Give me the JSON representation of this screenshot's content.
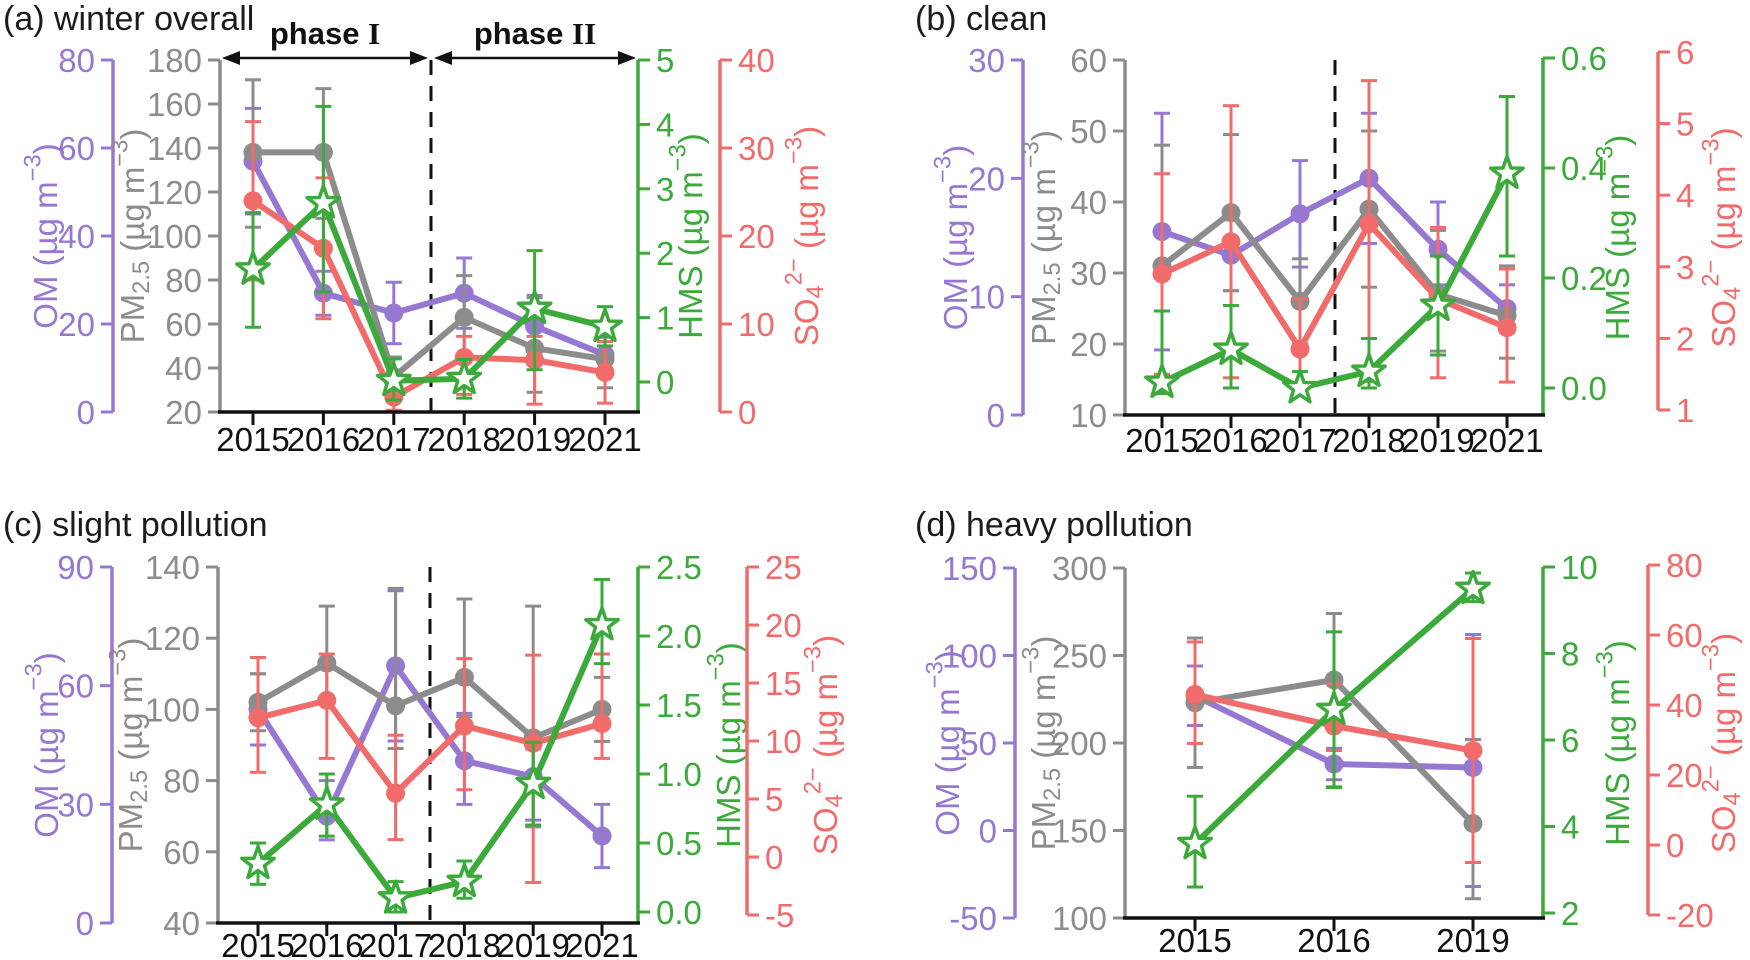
{
  "colors": {
    "om": "#9678D2",
    "pm": "#8C8C8C",
    "hms": "#3BAA3B",
    "so4": "#F26B6B",
    "axis_black": "#111111",
    "title_text": "#1c1c1c"
  },
  "axis_labels": {
    "om": [
      {
        "t": "OM (µg m"
      },
      {
        "t": "−3",
        "s": "sup"
      },
      {
        "t": ")"
      }
    ],
    "pm": [
      {
        "t": "PM"
      },
      {
        "t": "2.5",
        "s": "sub"
      },
      {
        "t": " (µg m"
      },
      {
        "t": "−3",
        "s": "sup"
      },
      {
        "t": ")"
      }
    ],
    "hms": [
      {
        "t": "HMS (µg m"
      },
      {
        "t": "−3",
        "s": "sup"
      },
      {
        "t": ")"
      }
    ],
    "so4": [
      {
        "t": "SO"
      },
      {
        "t": "4",
        "s": "sub"
      },
      {
        "t": "2−",
        "s": "sup"
      },
      {
        "t": " (µg m"
      },
      {
        "t": "−3",
        "s": "sup"
      },
      {
        "t": ")"
      }
    ]
  },
  "chart_data": [
    {
      "id": "a",
      "type": "line",
      "title": "(a) winter overall",
      "categories": [
        "2015",
        "2016",
        "2017",
        "2018",
        "2019",
        "2021"
      ],
      "phase_labels": [
        {
          "prefix": "phase ",
          "numeral": "I"
        },
        {
          "prefix": "phase ",
          "numeral": "II"
        }
      ],
      "divider_between": [
        "2017",
        "2018"
      ],
      "axes": {
        "om": {
          "ticks": [
            [
              0,
              "0"
            ],
            [
              20,
              "20"
            ],
            [
              40,
              "40"
            ],
            [
              60,
              "60"
            ],
            [
              80,
              "80"
            ]
          ]
        },
        "pm": {
          "ticks": [
            [
              20,
              "20"
            ],
            [
              40,
              "40"
            ],
            [
              60,
              "60"
            ],
            [
              80,
              "80"
            ],
            [
              100,
              "100"
            ],
            [
              120,
              "120"
            ],
            [
              140,
              "140"
            ],
            [
              160,
              "160"
            ],
            [
              180,
              "180"
            ]
          ]
        },
        "hms": {
          "ticks": [
            [
              0,
              "0"
            ],
            [
              1,
              "1"
            ],
            [
              2,
              "2"
            ],
            [
              3,
              "3"
            ],
            [
              4,
              "4"
            ],
            [
              5,
              "5"
            ]
          ]
        },
        "so4": {
          "ticks": [
            [
              0,
              "0"
            ],
            [
              10,
              "10"
            ],
            [
              20,
              "20"
            ],
            [
              30,
              "30"
            ],
            [
              40,
              "40"
            ]
          ]
        }
      },
      "series": {
        "om": {
          "name": "OM",
          "values": [
            57,
            27,
            22.5,
            27,
            19.5,
            13
          ],
          "err": [
            [
              12,
              12
            ],
            [
              5,
              5
            ],
            [
              7,
              7
            ],
            [
              8,
              8
            ],
            [
              7,
              7
            ],
            [
              4,
              4
            ]
          ]
        },
        "pm": {
          "name": "PM2.5",
          "values": [
            138,
            138,
            36,
            63,
            49,
            44
          ],
          "err": [
            [
              34,
              33
            ],
            [
              30,
              29
            ],
            [
              8,
              9
            ],
            [
              19,
              19
            ],
            [
              20,
              23
            ],
            [
              13,
              13
            ]
          ]
        },
        "hms": {
          "name": "HMS",
          "values": [
            1.75,
            2.78,
            0.02,
            0.05,
            1.14,
            0.86
          ],
          "err": [
            [
              0.9,
              0.88
            ],
            [
              1.38,
              1.5
            ],
            [
              0.3,
              0.34
            ],
            [
              0.3,
              0.3
            ],
            [
              0.95,
              0.9
            ],
            [
              0.3,
              0.31
            ]
          ]
        },
        "so4": {
          "name": "SO42-",
          "values": [
            24,
            18.6,
            1.7,
            6.2,
            5.9,
            4.5
          ],
          "err": [
            [
              9,
              9
            ],
            [
              8,
              8
            ],
            [
              1.5,
              1.5
            ],
            [
              4.2,
              2.4
            ],
            [
              5,
              2.7
            ],
            [
              3.5,
              3.5
            ]
          ]
        }
      }
    },
    {
      "id": "b",
      "type": "line",
      "title": "(b) clean",
      "categories": [
        "2015",
        "2016",
        "2017",
        "2018",
        "2019",
        "2021"
      ],
      "divider_between": [
        "2017",
        "2018"
      ],
      "axes": {
        "om": {
          "ticks": [
            [
              0,
              "0"
            ],
            [
              10,
              "10"
            ],
            [
              20,
              "20"
            ],
            [
              30,
              "30"
            ]
          ]
        },
        "pm": {
          "ticks": [
            [
              10,
              "10"
            ],
            [
              20,
              "20"
            ],
            [
              30,
              "30"
            ],
            [
              40,
              "40"
            ],
            [
              50,
              "50"
            ],
            [
              60,
              "60"
            ]
          ]
        },
        "hms": {
          "ticks": [
            [
              0,
              "0.0"
            ],
            [
              0.2,
              "0.2"
            ],
            [
              0.4,
              "0.4"
            ],
            [
              0.6,
              "0.6"
            ]
          ]
        },
        "so4": {
          "ticks": [
            [
              1,
              "1"
            ],
            [
              2,
              "2"
            ],
            [
              3,
              "3"
            ],
            [
              4,
              "4"
            ],
            [
              5,
              "5"
            ],
            [
              6,
              "6"
            ]
          ]
        }
      },
      "series": {
        "om": {
          "name": "OM",
          "values": [
            15.5,
            13.5,
            17,
            20,
            14,
            9
          ],
          "err": [
            [
              10,
              10
            ],
            [
              3,
              3
            ],
            [
              4.5,
              4.5
            ],
            [
              5.5,
              5.5
            ],
            [
              3,
              4
            ],
            [
              2,
              2
            ]
          ]
        },
        "pm": {
          "name": "PM2.5",
          "values": [
            31,
            38.5,
            26,
            39,
            27,
            24
          ],
          "err": [
            [
              17,
              17
            ],
            [
              11,
              11
            ],
            [
              6,
              6
            ],
            [
              11,
              11
            ],
            [
              8,
              9
            ],
            [
              6,
              7
            ]
          ]
        },
        "hms": {
          "name": "HMS",
          "values": [
            0.01,
            0.07,
            0.0,
            0.03,
            0.15,
            0.39
          ],
          "err": [
            [
              0.02,
              0.13
            ],
            [
              0.07,
              0.08
            ],
            [
              0.01,
              0.03
            ],
            [
              0.03,
              0.06
            ],
            [
              0.09,
              0.09
            ],
            [
              0.15,
              0.14
            ]
          ]
        },
        "so4": {
          "name": "SO42-",
          "values": [
            2.9,
            3.35,
            1.85,
            3.6,
            2.55,
            2.15
          ],
          "err": [
            [
              1.4,
              1.4
            ],
            [
              1.9,
              1.9
            ],
            [
              0.6,
              0.7
            ],
            [
              2.2,
              2.0
            ],
            [
              1.1,
              1.0
            ],
            [
              0.76,
              0.82
            ]
          ]
        }
      }
    },
    {
      "id": "c",
      "type": "line",
      "title": "(c) slight pollution",
      "categories": [
        "2015",
        "2016",
        "2017",
        "2018",
        "2019",
        "2021"
      ],
      "divider_between": [
        "2017",
        "2018"
      ],
      "axes": {
        "om": {
          "ticks": [
            [
              0,
              "0"
            ],
            [
              30,
              "30"
            ],
            [
              60,
              "60"
            ],
            [
              90,
              "90"
            ]
          ]
        },
        "pm": {
          "ticks": [
            [
              40,
              "40"
            ],
            [
              60,
              "60"
            ],
            [
              80,
              "80"
            ],
            [
              100,
              "100"
            ],
            [
              120,
              "120"
            ],
            [
              140,
              "140"
            ]
          ]
        },
        "hms": {
          "ticks": [
            [
              0,
              "0.0"
            ],
            [
              0.5,
              "0.5"
            ],
            [
              1,
              "1.0"
            ],
            [
              1.5,
              "1.5"
            ],
            [
              2,
              "2.0"
            ],
            [
              2.5,
              "2.5"
            ]
          ]
        },
        "so4": {
          "ticks": [
            [
              -5,
              "-5"
            ],
            [
              0,
              "0"
            ],
            [
              5,
              "5"
            ],
            [
              10,
              "10"
            ],
            [
              15,
              "15"
            ],
            [
              20,
              "20"
            ],
            [
              25,
              "25"
            ]
          ]
        }
      },
      "series": {
        "om": {
          "name": "OM",
          "values": [
            54,
            27,
            65,
            41,
            37,
            22
          ],
          "err": [
            [
              9,
              9
            ],
            [
              6,
              9
            ],
            [
              19,
              19
            ],
            [
              11,
              12
            ],
            [
              11,
              7
            ],
            [
              8,
              8
            ]
          ]
        },
        "pm": {
          "name": "PM2.5",
          "values": [
            102,
            113,
            101,
            109,
            92,
            100
          ],
          "err": [
            [
              8,
              8
            ],
            [
              10,
              16
            ],
            [
              12,
              33
            ],
            [
              11,
              22
            ],
            [
              25,
              37
            ],
            [
              9,
              9
            ]
          ]
        },
        "hms": {
          "name": "HMS",
          "values": [
            0.35,
            0.78,
            0.1,
            0.22,
            0.93,
            2.08
          ],
          "err": [
            [
              0.15,
              0.15
            ],
            [
              0.23,
              0.22
            ],
            [
              0.1,
              0.12
            ],
            [
              0.12,
              0.15
            ],
            [
              0.3,
              0.3
            ],
            [
              0.28,
              0.33
            ]
          ]
        },
        "so4": {
          "name": "SO42-",
          "values": [
            12,
            13.5,
            5.5,
            11.3,
            9.8,
            11.5
          ],
          "err": [
            [
              4.7,
              5.2
            ],
            [
              5,
              4
            ],
            [
              4,
              5
            ],
            [
              5.5,
              5.8
            ],
            [
              12,
              7.6
            ],
            [
              3,
              6
            ]
          ]
        }
      }
    },
    {
      "id": "d",
      "type": "line",
      "title": "(d) heavy pollution",
      "categories": [
        "2015",
        "2016",
        "2019"
      ],
      "axes": {
        "om": {
          "ticks": [
            [
              -50,
              "-50"
            ],
            [
              0,
              "0"
            ],
            [
              50,
              "50"
            ],
            [
              100,
              "100"
            ],
            [
              150,
              "150"
            ]
          ]
        },
        "pm": {
          "ticks": [
            [
              100,
              "100"
            ],
            [
              150,
              "150"
            ],
            [
              200,
              "200"
            ],
            [
              250,
              "250"
            ],
            [
              300,
              "300"
            ]
          ]
        },
        "hms": {
          "ticks": [
            [
              2,
              "2"
            ],
            [
              4,
              "4"
            ],
            [
              6,
              "6"
            ],
            [
              8,
              "8"
            ],
            [
              10,
              "10"
            ]
          ]
        },
        "so4": {
          "ticks": [
            [
              -20,
              "-20"
            ],
            [
              0,
              "0"
            ],
            [
              20,
              "20"
            ],
            [
              40,
              "40"
            ],
            [
              60,
              "60"
            ],
            [
              80,
              "80"
            ]
          ]
        }
      },
      "series": {
        "om": {
          "name": "OM",
          "values": [
            77,
            38,
            36
          ],
          "err": [
            [
              17,
              17
            ],
            [
              9,
              9
            ],
            [
              68,
              76
            ]
          ]
        },
        "pm": {
          "name": "PM2.5",
          "values": [
            223,
            236,
            154
          ],
          "err": [
            [
              37,
              37
            ],
            [
              61,
              38
            ],
            [
              43,
              48
            ]
          ]
        },
        "hms": {
          "name": "HMS",
          "values": [
            3.6,
            6.7,
            9.5
          ],
          "err": [
            [
              1.0,
              1.1
            ],
            [
              1.8,
              1.8
            ],
            [
              0.3,
              0.36
            ]
          ]
        },
        "so4": {
          "name": "SO42-",
          "values": [
            43,
            34,
            27
          ],
          "err": [
            [
              14,
              15
            ],
            [
              7,
              12
            ],
            [
              32,
              32
            ]
          ]
        }
      }
    }
  ]
}
